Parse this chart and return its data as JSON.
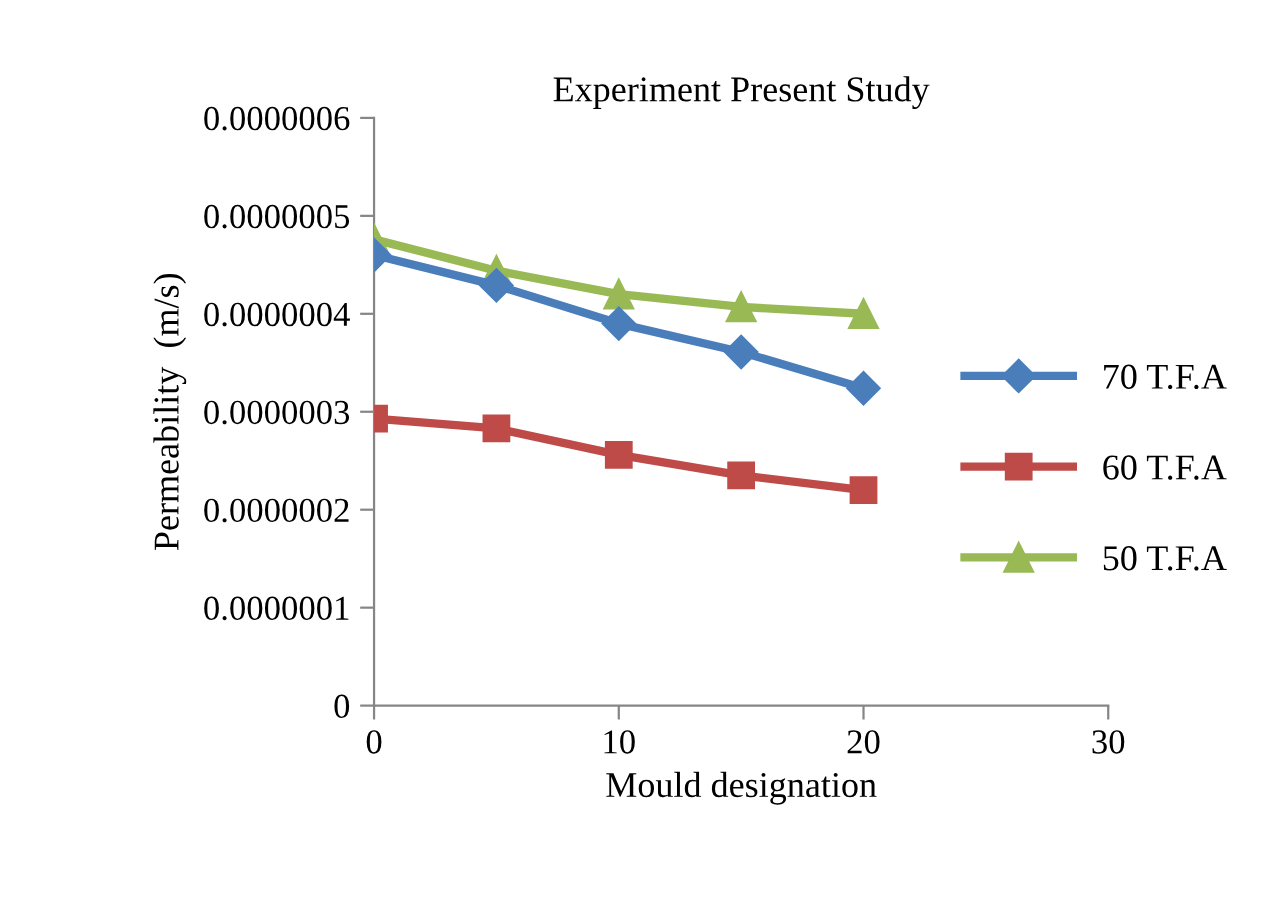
{
  "chart_data": {
    "type": "line",
    "title": "Experiment Present Study",
    "xlabel": "Mould designation",
    "ylabel": "Permeability  (m/s)",
    "x": [
      0,
      5,
      10,
      15,
      20
    ],
    "series": [
      {
        "name": "70 T.F.A",
        "color": "#4a7ebb",
        "marker": "diamond",
        "values": [
          4.6e-07,
          4.29e-07,
          3.9e-07,
          3.61e-07,
          3.24e-07
        ]
      },
      {
        "name": "60 T.F.A",
        "color": "#be4b48",
        "marker": "square",
        "values": [
          2.93e-07,
          2.83e-07,
          2.56e-07,
          2.35e-07,
          2.2e-07
        ]
      },
      {
        "name": "50 T.F.A",
        "color": "#98b954",
        "marker": "triangle",
        "values": [
          4.76e-07,
          4.44e-07,
          4.2e-07,
          4.07e-07,
          4e-07
        ]
      }
    ],
    "xlim": [
      0,
      30
    ],
    "xticks": [
      0,
      10,
      20,
      30
    ],
    "ylim": [
      0,
      6e-07
    ],
    "yticks": [
      0,
      {
        "value": 1e-07,
        "label": "0.0000001"
      },
      {
        "value": 2e-07,
        "label": "0.0000002"
      },
      {
        "value": 3e-07,
        "label": "0.0000003"
      },
      {
        "value": 4e-07,
        "label": "0.0000004"
      },
      {
        "value": 5e-07,
        "label": "0.0000005"
      },
      {
        "value": 6e-07,
        "label": "0.0000006"
      }
    ],
    "legend": "right",
    "grid": false,
    "line_style": "solid"
  }
}
